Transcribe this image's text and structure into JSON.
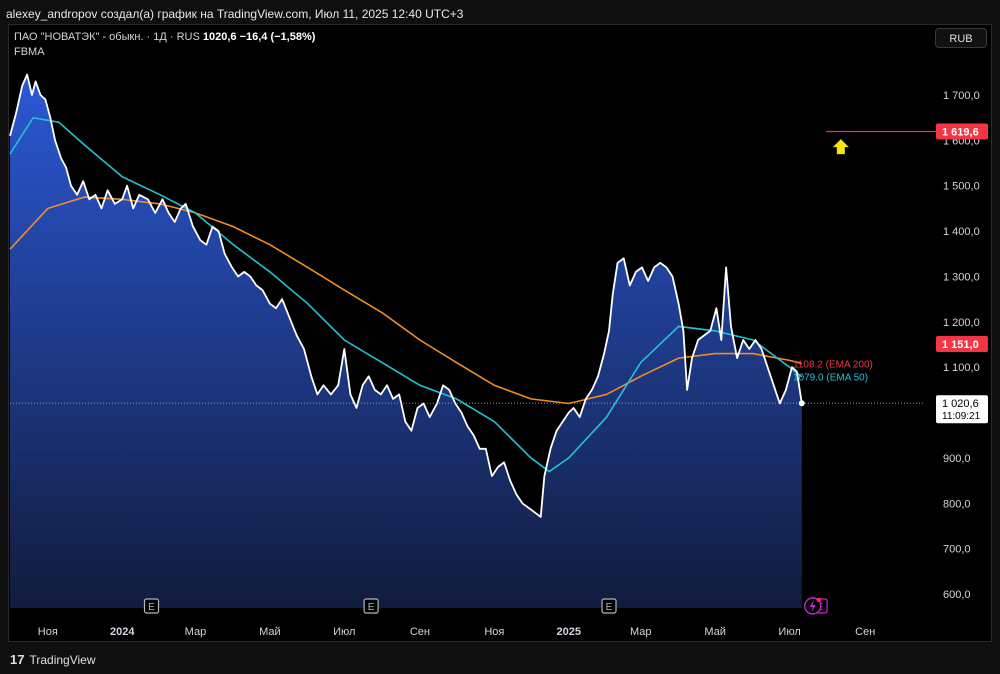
{
  "header": {
    "attribution": "alexey_andropov создал(а) график на TradingView.com, Июл 11, 2025 12:40 UTC+3"
  },
  "legend": {
    "symbol": "ПАО \"НОВАТЭК\" - обыкн. · 1Д · RUS",
    "price": "1020,6",
    "change": "−16,4 (−1,58%)",
    "indicator": "FBMA"
  },
  "currency_button": "RUB",
  "footer": {
    "brand": "TradingView",
    "logo": "17"
  },
  "colors": {
    "price_line": "#ffffff",
    "ema50": "#22c3d6",
    "ema200": "#f28c28",
    "fill_top": "#2d5de0",
    "marker_red": "#f23645",
    "arrow": "#f5e60a"
  },
  "chart_data": {
    "type": "area",
    "title": "",
    "ylim": [
      600,
      1760
    ],
    "y_ticks": [
      "1 700,0",
      "1 600,0",
      "1 500,0",
      "1 400,0",
      "1 300,0",
      "1 200,0",
      "1 100,0",
      "1 000,0",
      "900,0",
      "800,0",
      "700,0",
      "600,0"
    ],
    "y_tick_values": [
      1700,
      1600,
      1500,
      1400,
      1300,
      1200,
      1100,
      1000,
      900,
      800,
      700,
      600
    ],
    "x_ticks": [
      "Ноя",
      "2024",
      "Мар",
      "Май",
      "Июл",
      "Сен",
      "Ноя",
      "2025",
      "Мар",
      "Май",
      "Июл",
      "Сен"
    ],
    "x_tick_dates": [
      "2023-11-01",
      "2024-01-01",
      "2024-03-01",
      "2024-05-01",
      "2024-07-01",
      "2024-09-01",
      "2024-11-01",
      "2025-01-01",
      "2025-03-01",
      "2025-05-01",
      "2025-07-01",
      "2025-09-01"
    ],
    "x_range": [
      "2023-10-01",
      "2025-10-20"
    ],
    "series": [
      {
        "name": "",
        "kind": "price",
        "points": [
          [
            "2023-10-01",
            1610
          ],
          [
            "2023-10-06",
            1660
          ],
          [
            "2023-10-11",
            1720
          ],
          [
            "2023-10-15",
            1745
          ],
          [
            "2023-10-19",
            1700
          ],
          [
            "2023-10-22",
            1730
          ],
          [
            "2023-10-26",
            1700
          ],
          [
            "2023-10-30",
            1690
          ],
          [
            "2023-11-03",
            1650
          ],
          [
            "2023-11-07",
            1600
          ],
          [
            "2023-11-12",
            1560
          ],
          [
            "2023-11-16",
            1540
          ],
          [
            "2023-11-20",
            1500
          ],
          [
            "2023-11-25",
            1480
          ],
          [
            "2023-11-30",
            1510
          ],
          [
            "2023-12-05",
            1470
          ],
          [
            "2023-12-10",
            1480
          ],
          [
            "2023-12-15",
            1450
          ],
          [
            "2023-12-20",
            1490
          ],
          [
            "2023-12-26",
            1460
          ],
          [
            "2024-01-01",
            1470
          ],
          [
            "2024-01-05",
            1500
          ],
          [
            "2024-01-10",
            1450
          ],
          [
            "2024-01-15",
            1480
          ],
          [
            "2024-01-22",
            1470
          ],
          [
            "2024-01-28",
            1440
          ],
          [
            "2024-02-03",
            1470
          ],
          [
            "2024-02-08",
            1440
          ],
          [
            "2024-02-13",
            1420
          ],
          [
            "2024-02-18",
            1450
          ],
          [
            "2024-02-22",
            1460
          ],
          [
            "2024-02-28",
            1410
          ],
          [
            "2024-03-05",
            1380
          ],
          [
            "2024-03-10",
            1370
          ],
          [
            "2024-03-15",
            1410
          ],
          [
            "2024-03-20",
            1400
          ],
          [
            "2024-03-25",
            1350
          ],
          [
            "2024-03-31",
            1320
          ],
          [
            "2024-04-05",
            1300
          ],
          [
            "2024-04-10",
            1310
          ],
          [
            "2024-04-15",
            1300
          ],
          [
            "2024-04-20",
            1280
          ],
          [
            "2024-04-25",
            1270
          ],
          [
            "2024-05-01",
            1240
          ],
          [
            "2024-05-06",
            1230
          ],
          [
            "2024-05-11",
            1250
          ],
          [
            "2024-05-17",
            1210
          ],
          [
            "2024-05-23",
            1170
          ],
          [
            "2024-05-29",
            1140
          ],
          [
            "2024-06-04",
            1080
          ],
          [
            "2024-06-09",
            1040
          ],
          [
            "2024-06-14",
            1060
          ],
          [
            "2024-06-20",
            1040
          ],
          [
            "2024-06-26",
            1060
          ],
          [
            "2024-07-01",
            1140
          ],
          [
            "2024-07-06",
            1040
          ],
          [
            "2024-07-11",
            1010
          ],
          [
            "2024-07-16",
            1060
          ],
          [
            "2024-07-21",
            1080
          ],
          [
            "2024-07-26",
            1050
          ],
          [
            "2024-07-31",
            1040
          ],
          [
            "2024-08-05",
            1060
          ],
          [
            "2024-08-10",
            1030
          ],
          [
            "2024-08-15",
            1040
          ],
          [
            "2024-08-20",
            980
          ],
          [
            "2024-08-25",
            960
          ],
          [
            "2024-08-30",
            1010
          ],
          [
            "2024-09-04",
            1020
          ],
          [
            "2024-09-09",
            990
          ],
          [
            "2024-09-15",
            1020
          ],
          [
            "2024-09-20",
            1060
          ],
          [
            "2024-09-25",
            1050
          ],
          [
            "2024-09-30",
            1020
          ],
          [
            "2024-10-05",
            1000
          ],
          [
            "2024-10-10",
            970
          ],
          [
            "2024-10-15",
            950
          ],
          [
            "2024-10-20",
            920
          ],
          [
            "2024-10-25",
            920
          ],
          [
            "2024-10-30",
            860
          ],
          [
            "2024-11-04",
            880
          ],
          [
            "2024-11-09",
            890
          ],
          [
            "2024-11-14",
            850
          ],
          [
            "2024-11-19",
            820
          ],
          [
            "2024-11-24",
            800
          ],
          [
            "2024-11-29",
            790
          ],
          [
            "2024-12-04",
            780
          ],
          [
            "2024-12-09",
            770
          ],
          [
            "2024-12-12",
            860
          ],
          [
            "2024-12-17",
            920
          ],
          [
            "2024-12-22",
            960
          ],
          [
            "2024-12-27",
            980
          ],
          [
            "2025-01-01",
            1000
          ],
          [
            "2025-01-05",
            1010
          ],
          [
            "2025-01-10",
            990
          ],
          [
            "2025-01-15",
            1030
          ],
          [
            "2025-01-20",
            1050
          ],
          [
            "2025-01-25",
            1080
          ],
          [
            "2025-01-30",
            1130
          ],
          [
            "2025-02-03",
            1180
          ],
          [
            "2025-02-06",
            1260
          ],
          [
            "2025-02-10",
            1330
          ],
          [
            "2025-02-15",
            1340
          ],
          [
            "2025-02-20",
            1280
          ],
          [
            "2025-02-25",
            1310
          ],
          [
            "2025-03-02",
            1320
          ],
          [
            "2025-03-07",
            1290
          ],
          [
            "2025-03-12",
            1320
          ],
          [
            "2025-03-17",
            1330
          ],
          [
            "2025-03-22",
            1320
          ],
          [
            "2025-03-27",
            1300
          ],
          [
            "2025-04-01",
            1240
          ],
          [
            "2025-04-05",
            1180
          ],
          [
            "2025-04-08",
            1050
          ],
          [
            "2025-04-12",
            1120
          ],
          [
            "2025-04-17",
            1160
          ],
          [
            "2025-04-22",
            1170
          ],
          [
            "2025-04-27",
            1180
          ],
          [
            "2025-05-02",
            1230
          ],
          [
            "2025-05-06",
            1160
          ],
          [
            "2025-05-10",
            1320
          ],
          [
            "2025-05-14",
            1190
          ],
          [
            "2025-05-19",
            1120
          ],
          [
            "2025-05-24",
            1160
          ],
          [
            "2025-05-29",
            1140
          ],
          [
            "2025-06-03",
            1160
          ],
          [
            "2025-06-08",
            1140
          ],
          [
            "2025-06-13",
            1100
          ],
          [
            "2025-06-18",
            1060
          ],
          [
            "2025-06-23",
            1020
          ],
          [
            "2025-06-28",
            1050
          ],
          [
            "2025-07-03",
            1100
          ],
          [
            "2025-07-07",
            1090
          ],
          [
            "2025-07-11",
            1020.6
          ]
        ]
      },
      {
        "name": "EMA 50",
        "kind": "ema50",
        "points": [
          [
            "2023-10-01",
            1570
          ],
          [
            "2023-10-20",
            1650
          ],
          [
            "2023-11-10",
            1640
          ],
          [
            "2023-12-01",
            1590
          ],
          [
            "2024-01-01",
            1520
          ],
          [
            "2024-02-01",
            1480
          ],
          [
            "2024-03-01",
            1440
          ],
          [
            "2024-04-01",
            1370
          ],
          [
            "2024-05-01",
            1310
          ],
          [
            "2024-06-01",
            1240
          ],
          [
            "2024-07-01",
            1160
          ],
          [
            "2024-08-01",
            1110
          ],
          [
            "2024-09-01",
            1060
          ],
          [
            "2024-10-01",
            1030
          ],
          [
            "2024-11-01",
            980
          ],
          [
            "2024-12-01",
            900
          ],
          [
            "2024-12-16",
            870
          ],
          [
            "2025-01-01",
            900
          ],
          [
            "2025-02-01",
            990
          ],
          [
            "2025-03-01",
            1110
          ],
          [
            "2025-04-01",
            1190
          ],
          [
            "2025-05-01",
            1180
          ],
          [
            "2025-06-01",
            1160
          ],
          [
            "2025-07-01",
            1100
          ],
          [
            "2025-07-11",
            1079
          ]
        ]
      },
      {
        "name": "EMA 200",
        "kind": "ema200",
        "points": [
          [
            "2023-10-01",
            1360
          ],
          [
            "2023-11-01",
            1450
          ],
          [
            "2023-12-01",
            1475
          ],
          [
            "2024-01-01",
            1470
          ],
          [
            "2024-02-01",
            1460
          ],
          [
            "2024-03-01",
            1440
          ],
          [
            "2024-04-01",
            1410
          ],
          [
            "2024-05-01",
            1370
          ],
          [
            "2024-06-01",
            1320
          ],
          [
            "2024-07-01",
            1270
          ],
          [
            "2024-08-01",
            1220
          ],
          [
            "2024-09-01",
            1160
          ],
          [
            "2024-10-01",
            1110
          ],
          [
            "2024-11-01",
            1060
          ],
          [
            "2024-12-01",
            1030
          ],
          [
            "2025-01-01",
            1020
          ],
          [
            "2025-02-01",
            1040
          ],
          [
            "2025-03-01",
            1080
          ],
          [
            "2025-04-01",
            1120
          ],
          [
            "2025-05-01",
            1130
          ],
          [
            "2025-06-01",
            1130
          ],
          [
            "2025-07-01",
            1115
          ],
          [
            "2025-07-11",
            1108.2
          ]
        ]
      }
    ],
    "labels": {
      "ema200": "1108.2 (EMA 200)",
      "ema50": "1079.0 (EMA 50)"
    },
    "price_marks": [
      {
        "value": 1619.6,
        "text": "1 619,6",
        "kind": "alert-line"
      },
      {
        "value": 1151.0,
        "text": "1 151,0",
        "kind": "red-badge"
      },
      {
        "value": 1020.6,
        "text": "1 020,6",
        "time": "11:09:21",
        "kind": "last-price"
      }
    ],
    "alert_line_start": "2025-07-31",
    "arrow_value": 1585,
    "arrow_date": "2025-08-12",
    "event_markers": [
      {
        "date": "2024-01-25",
        "label": "E",
        "color": "#b2b5be"
      },
      {
        "date": "2024-07-23",
        "label": "E",
        "color": "#b2b5be"
      },
      {
        "date": "2025-02-03",
        "label": "E",
        "color": "#b2b5be"
      },
      {
        "date": "2025-07-26",
        "label": "E",
        "color": "#c026d3"
      }
    ],
    "event_bolt_date": "2025-07-20",
    "grid": false,
    "legend_position": "top-left"
  }
}
